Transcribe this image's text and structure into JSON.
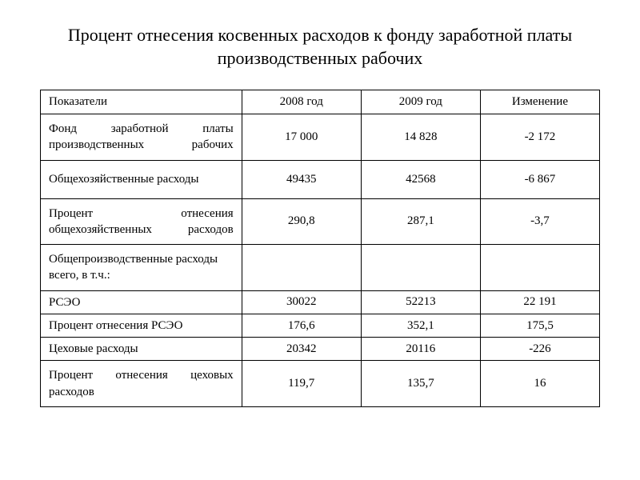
{
  "title": "Процент отнесения косвенных расходов к фонду заработной платы производственных рабочих",
  "table": {
    "headers": {
      "col0": "Показатели",
      "col1": "2008 год",
      "col2": "2009 год",
      "col3": "Изменение"
    },
    "rows": [
      {
        "indicator": "Фонд заработной платы производственных рабочих",
        "y2008": "17 000",
        "y2009": "14 828",
        "change": "-2 172",
        "tall": true,
        "justify": true
      },
      {
        "indicator": "Общехозяйственные расходы",
        "y2008": "49435",
        "y2009": "42568",
        "change": "-6 867",
        "tall": true,
        "justify": false
      },
      {
        "indicator": "Процент отнесения общехозяйственных расходов",
        "y2008": "290,8",
        "y2009": "287,1",
        "change": "-3,7",
        "tall": true,
        "justify": true
      },
      {
        "indicator": "Общепроизводственные расходы всего, в т.ч.:",
        "y2008": "",
        "y2009": "",
        "change": "",
        "tall": true,
        "justify": false
      },
      {
        "indicator": "РСЭО",
        "y2008": "30022",
        "y2009": "52213",
        "change": "22 191",
        "tall": false,
        "justify": false
      },
      {
        "indicator": "Процент отнесения РСЭО",
        "y2008": "176,6",
        "y2009": "352,1",
        "change": "175,5",
        "tall": false,
        "justify": false
      },
      {
        "indicator": "Цеховые расходы",
        "y2008": "20342",
        "y2009": "20116",
        "change": "-226",
        "tall": false,
        "justify": false
      },
      {
        "indicator": "Процент отнесения цеховых расходов",
        "y2008": "119,7",
        "y2009": "135,7",
        "change": "16",
        "tall": true,
        "justify": true
      }
    ]
  }
}
